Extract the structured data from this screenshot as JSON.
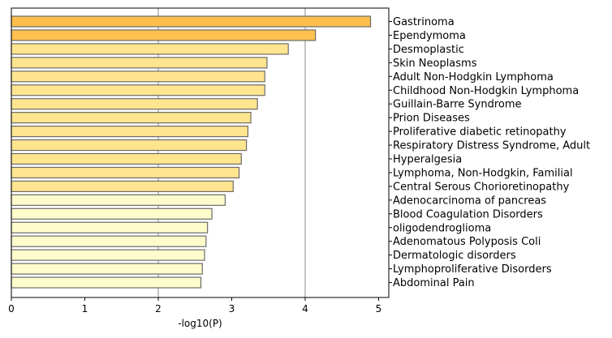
{
  "chart_data": {
    "type": "bar",
    "orientation": "horizontal",
    "xlabel": "-log10(P)",
    "ylabel": "",
    "title": "",
    "xlim": [
      0,
      5.15
    ],
    "xticks": [
      "0",
      "1",
      "2",
      "3",
      "4",
      "5"
    ],
    "grid": "vertical lines at 2 and 4",
    "label_position": "right",
    "categories": [
      "Gastrinoma",
      "Ependymoma",
      "Desmoplastic",
      "Skin Neoplasms",
      "Adult Non-Hodgkin Lymphoma",
      "Childhood Non-Hodgkin Lymphoma",
      "Guillain-Barre Syndrome",
      "Prion Diseases",
      "Proliferative diabetic retinopathy",
      "Respiratory Distress Syndrome, Adult",
      "Hyperalgesia",
      "Lymphoma, Non-Hodgkin, Familial",
      "Central Serous Chorioretinopathy",
      "Adenocarcinoma of pancreas",
      "Blood Coagulation Disorders",
      "oligodendroglioma",
      "Adenomatous Polyposis Coli",
      "Dermatologic disorders",
      "Lymphoproliferative Disorders",
      "Abdominal Pain"
    ],
    "values": [
      4.89,
      4.14,
      3.77,
      3.48,
      3.45,
      3.45,
      3.35,
      3.26,
      3.22,
      3.2,
      3.13,
      3.1,
      3.02,
      2.91,
      2.73,
      2.67,
      2.65,
      2.63,
      2.6,
      2.58
    ],
    "colors": [
      "#FFBE4D",
      "#FFC04F",
      "#FFE58F",
      "#FFE58F",
      "#FFE58F",
      "#FFE58F",
      "#FFE58F",
      "#FFE58F",
      "#FFE58F",
      "#FFE58F",
      "#FFE58F",
      "#FFE58F",
      "#FFE58F",
      "#FFFCCC",
      "#FFFCCC",
      "#FFFCCC",
      "#FFFCCC",
      "#FFFCCC",
      "#FFFCCC",
      "#FFFCCC"
    ],
    "bar_edge_color": "#6b6b6b",
    "grid_color": "#b0b0b0"
  }
}
